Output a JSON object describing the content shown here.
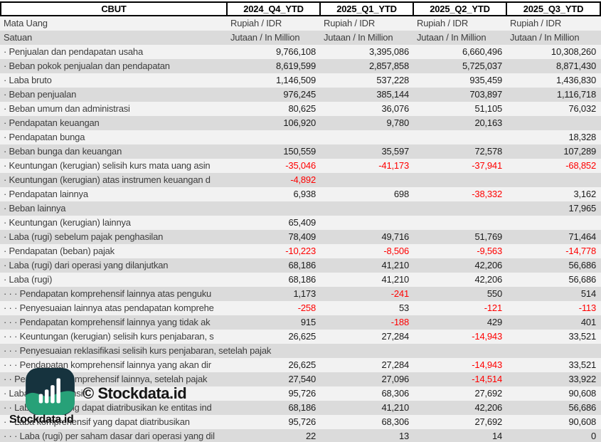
{
  "table": {
    "ticker": "CBUT",
    "periods": [
      "2024_Q4_YTD",
      "2025_Q1_YTD",
      "2025_Q2_YTD",
      "2025_Q3_YTD"
    ],
    "meta": [
      {
        "label": "Mata Uang",
        "values": [
          "Rupiah / IDR",
          "Rupiah / IDR",
          "Rupiah / IDR",
          "Rupiah / IDR"
        ]
      },
      {
        "label": "Satuan",
        "values": [
          "Jutaan / In Million",
          "Jutaan / In Million",
          "Jutaan / In Million",
          "Jutaan / In Million"
        ]
      }
    ],
    "rows": [
      {
        "label": "· Penjualan dan pendapatan usaha",
        "values": [
          "9,766,108",
          "3,395,086",
          "6,660,496",
          "10,308,260"
        ]
      },
      {
        "label": "· Beban pokok penjualan dan pendapatan",
        "values": [
          "8,619,599",
          "2,857,858",
          "5,725,037",
          "8,871,430"
        ]
      },
      {
        "label": "· Laba bruto",
        "values": [
          "1,146,509",
          "537,228",
          "935,459",
          "1,436,830"
        ]
      },
      {
        "label": "· Beban penjualan",
        "values": [
          "976,245",
          "385,144",
          "703,897",
          "1,116,718"
        ]
      },
      {
        "label": "· Beban umum dan administrasi",
        "values": [
          "80,625",
          "36,076",
          "51,105",
          "76,032"
        ]
      },
      {
        "label": "· Pendapatan keuangan",
        "values": [
          "106,920",
          "9,780",
          "20,163",
          ""
        ]
      },
      {
        "label": "· Pendapatan bunga",
        "values": [
          "",
          "",
          "",
          "18,328"
        ]
      },
      {
        "label": "· Beban bunga dan keuangan",
        "values": [
          "150,559",
          "35,597",
          "72,578",
          "107,289"
        ]
      },
      {
        "label": "· Keuntungan (kerugian) selisih kurs mata uang asin",
        "values": [
          "-35,046",
          "-41,173",
          "-37,941",
          "-68,852"
        ]
      },
      {
        "label": "· Keuntungan (kerugian) atas instrumen keuangan d",
        "values": [
          "-4,892",
          "",
          "",
          ""
        ]
      },
      {
        "label": "· Pendapatan lainnya",
        "values": [
          "6,938",
          "698",
          "-38,332",
          "3,162"
        ]
      },
      {
        "label": "· Beban lainnya",
        "values": [
          "",
          "",
          "",
          "17,965"
        ]
      },
      {
        "label": "· Keuntungan (kerugian) lainnya",
        "values": [
          "65,409",
          "",
          "",
          ""
        ]
      },
      {
        "label": "· Laba (rugi) sebelum pajak penghasilan",
        "values": [
          "78,409",
          "49,716",
          "51,769",
          "71,464"
        ]
      },
      {
        "label": "· Pendapatan (beban) pajak",
        "values": [
          "-10,223",
          "-8,506",
          "-9,563",
          "-14,778"
        ]
      },
      {
        "label": "· Laba (rugi) dari operasi yang dilanjutkan",
        "values": [
          "68,186",
          "41,210",
          "42,206",
          "56,686"
        ]
      },
      {
        "label": "· Laba (rugi)",
        "values": [
          "68,186",
          "41,210",
          "42,206",
          "56,686"
        ]
      },
      {
        "label": "· · · Pendapatan komprehensif lainnya atas penguku",
        "values": [
          "1,173",
          "-241",
          "550",
          "514"
        ]
      },
      {
        "label": "· · · Penyesuaian lainnya atas pendapatan komprehe",
        "values": [
          "-258",
          "53",
          "-121",
          "-113"
        ]
      },
      {
        "label": "· · · Pendapatan komprehensif lainnya yang tidak ak",
        "values": [
          "915",
          "-188",
          "429",
          "401"
        ]
      },
      {
        "label": "· · · Keuntungan (kerugian) selisih kurs penjabaran, s",
        "values": [
          "26,625",
          "27,284",
          "-14,943",
          "33,521"
        ]
      },
      {
        "label": "· · · Penyesuaian reklasifikasi selisih kurs penjabaran, setelah pajak",
        "values": [
          "",
          "",
          "",
          ""
        ],
        "overflow": true
      },
      {
        "label": "· · · Pendapatan komprehensif lainnya yang akan dir",
        "values": [
          "26,625",
          "27,284",
          "-14,943",
          "33,521"
        ]
      },
      {
        "label": "· · Pendapatan komprehensif lainnya, setelah pajak",
        "values": [
          "27,540",
          "27,096",
          "-14,514",
          "33,922"
        ]
      },
      {
        "label": "· Laba komprehensif",
        "values": [
          "95,726",
          "68,306",
          "27,692",
          "90,608"
        ]
      },
      {
        "label": "· · Laba (rugi) yang dapat diatribusikan ke entitas ind",
        "values": [
          "68,186",
          "41,210",
          "42,206",
          "56,686"
        ]
      },
      {
        "label": "· · Laba komprehensif yang dapat diatribusikan",
        "values": [
          "95,726",
          "68,306",
          "27,692",
          "90,608"
        ]
      },
      {
        "label": "· · · Laba (rugi) per saham dasar dari operasi yang dil",
        "values": [
          "22",
          "13",
          "14",
          "0"
        ]
      }
    ]
  },
  "watermark": {
    "copyright": "© Stockdata.id",
    "brand": "Stockdata.id",
    "logo_icon": "stockdata-bar-chart-logo"
  },
  "colors": {
    "row_light": "#F2F2F2",
    "row_shade": "#DBDBDB",
    "negative": "#FF0000",
    "label_text": "#3D3D3D",
    "value_text": "#1B1B1B",
    "header_border": "#000000",
    "logo_dark": "#16333E",
    "logo_green": "#27A178",
    "logo_bars": "#FFFFFF"
  }
}
